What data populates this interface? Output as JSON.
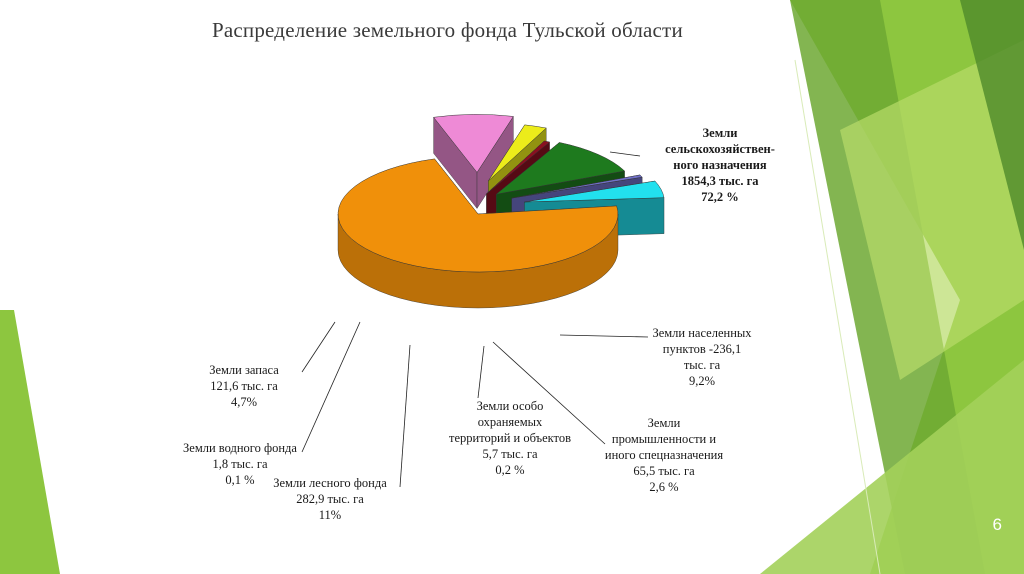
{
  "slide": {
    "title": "Распределение земельного фонда Тульской области",
    "page_number": "6",
    "accent_colors": [
      "#8dc63f",
      "#6da832",
      "#b8dc6a",
      "#4f8a2a"
    ]
  },
  "chart_data": {
    "type": "pie",
    "title": "Распределение земельного фонда Тульской области",
    "unit": "тыс. га",
    "slices": [
      {
        "name": "Земли сельскохозяйственного назначения",
        "value": 1854.3,
        "percent": 72.2,
        "color": "#f0900a",
        "label_lines": [
          "Земли",
          "сельскохозяйствен-",
          "ного назначения",
          "1854,3 тыс. га",
          "72,2 %"
        ]
      },
      {
        "name": "Земли населенных пунктов",
        "value": 236.1,
        "percent": 9.2,
        "color": "#ee8ad6",
        "label_lines": [
          "Земли населенных",
          "пунктов -236,1",
          "тыс. га",
          "9,2%"
        ]
      },
      {
        "name": "Земли промышленности и иного спецназначения",
        "value": 65.5,
        "percent": 2.6,
        "color": "#ecec1a",
        "label_lines": [
          "Земли",
          "промышленности и",
          "иного спецназначения",
          "65,5 тыс. га",
          "2,6 %"
        ]
      },
      {
        "name": "Земли особо охраняемых территорий и объектов",
        "value": 5.7,
        "percent": 0.2,
        "color": "#8a1020",
        "label_lines": [
          "Земли особо",
          "охраняемых",
          "территорий и объектов",
          "5,7 тыс. га",
          "0,2 %"
        ]
      },
      {
        "name": "Земли лесного фонда",
        "value": 282.9,
        "percent": 11,
        "color": "#1e7a1e",
        "label_lines": [
          "Земли лесного фонда",
          "282,9 тыс. га",
          "11%"
        ]
      },
      {
        "name": "Земли водного фонда",
        "value": 1.8,
        "percent": 0.1,
        "color": "#7070c8",
        "label_lines": [
          "Земли водного фонда",
          "1,8 тыс. га",
          "0,1 %"
        ]
      },
      {
        "name": "Земли запаса",
        "value": 121.6,
        "percent": 4.7,
        "color": "#22e0ee",
        "label_lines": [
          "Земли запаса",
          "121,6 тыс. га",
          "4,7%"
        ]
      }
    ]
  }
}
